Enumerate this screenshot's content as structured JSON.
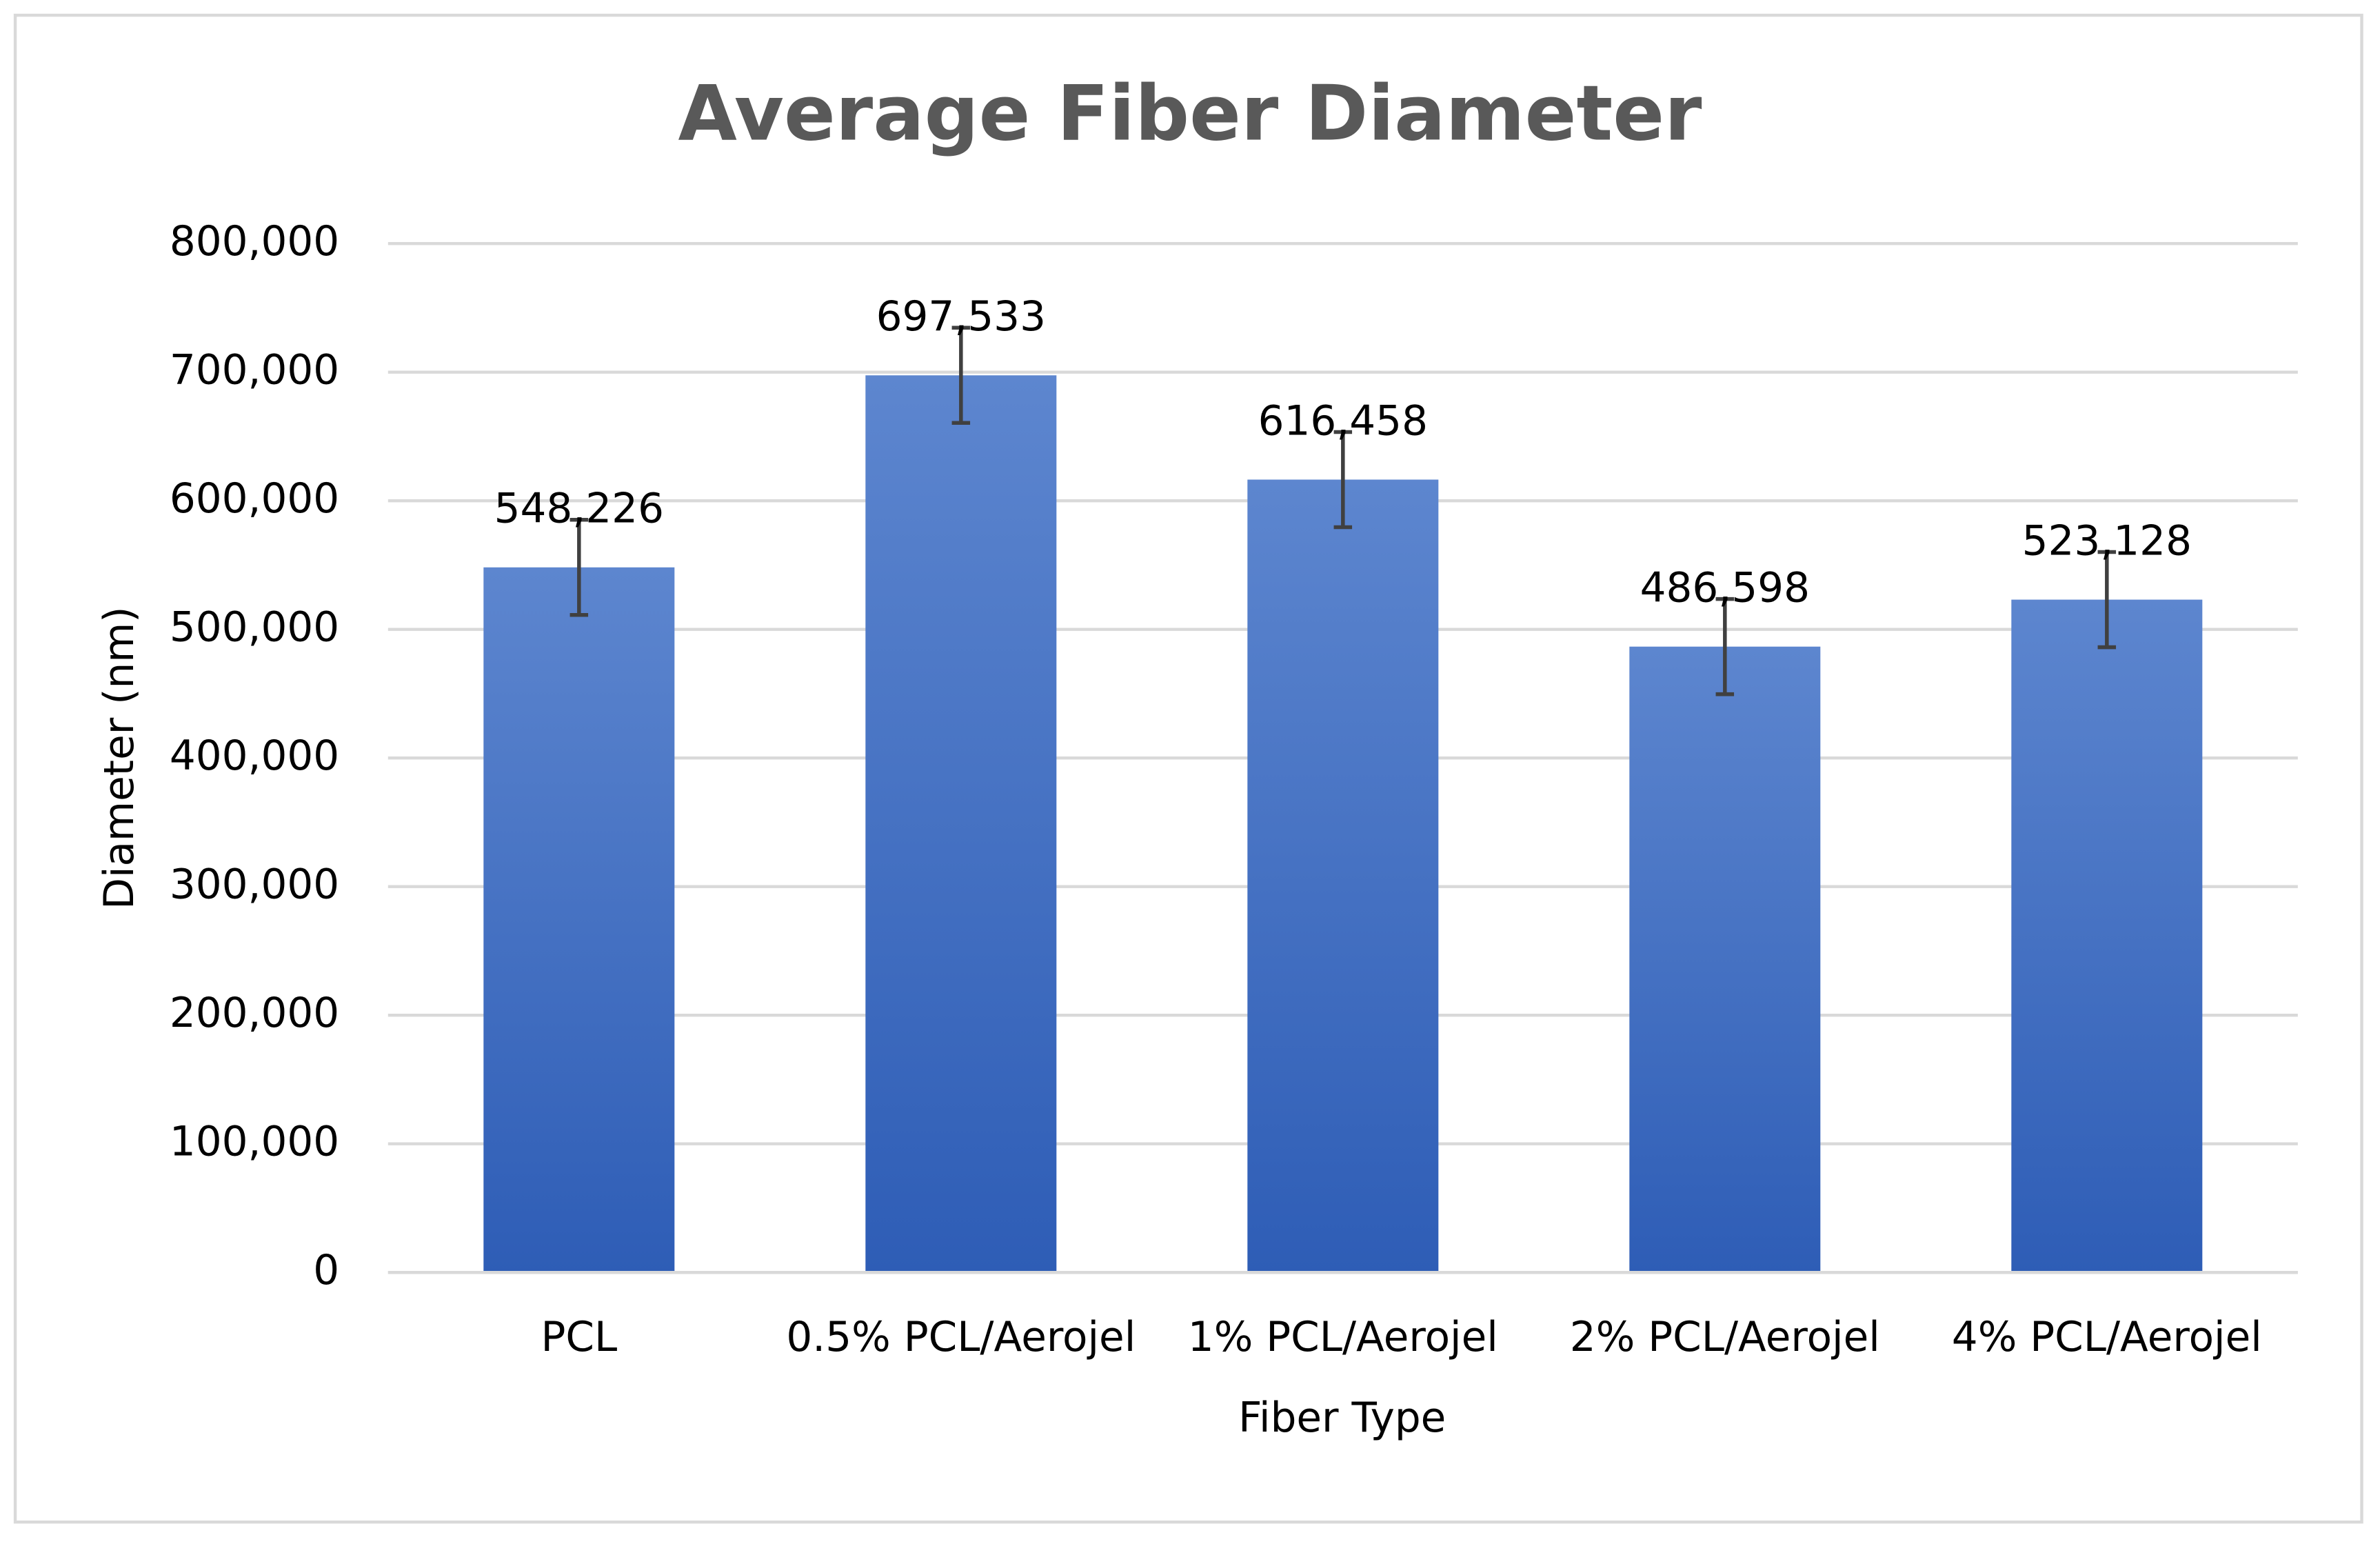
{
  "chart_data": {
    "type": "bar",
    "title": "Average Fiber Diameter",
    "x_label": "Fiber Type",
    "y_label": "Diameter (nm)",
    "categories": [
      "PCL",
      "0.5% PCL/Aerojel",
      "1% PCL/Aerojel",
      "2% PCL/Aerojel",
      "4% PCL/Aerojel"
    ],
    "values": [
      548226,
      697533,
      616458,
      486598,
      523128
    ],
    "value_labels": [
      "548,226",
      "697,533",
      "616,458",
      "486,598",
      "523,128"
    ],
    "errors": [
      37000,
      37000,
      37000,
      37000,
      37000
    ],
    "color": "#4472c4",
    "ylim": [
      0,
      800000
    ],
    "yticks": [
      0,
      {
        "value": 100000,
        "label": "100,000"
      },
      {
        "value": 200000,
        "label": "200,000"
      },
      {
        "value": 300000,
        "label": "300,000"
      },
      {
        "value": 400000,
        "label": "400,000"
      },
      {
        "value": 500000,
        "label": "500,000"
      },
      {
        "value": 600000,
        "label": "600,000"
      },
      {
        "value": 700000,
        "label": "700,000"
      },
      {
        "value": 800000,
        "label": "800,000"
      }
    ],
    "grid": true
  }
}
